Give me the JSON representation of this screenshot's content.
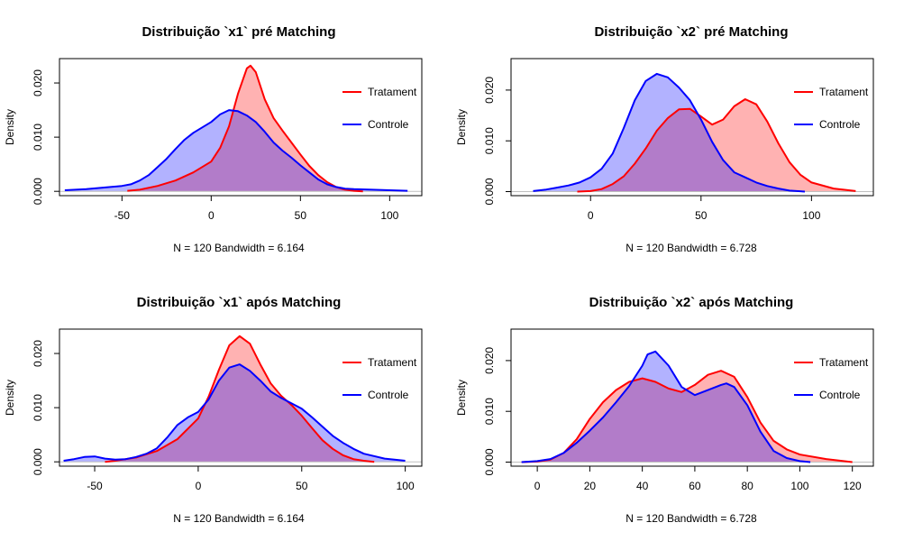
{
  "colors": {
    "tratamento_line": "#ff0000",
    "tratamento_fill": "#ff0000",
    "controle_line": "#0000ff",
    "controle_fill": "#0000ff",
    "overlap_fill": "#a27ec6"
  },
  "legend_labels": [
    "Tratament",
    "Controle"
  ],
  "chart_data": [
    {
      "type": "area",
      "title": "Distribuição `x1` pré Matching",
      "xlabel": "N = 120   Bandwidth = 6.164",
      "ylabel": "Density",
      "xlim": [
        -85,
        118
      ],
      "ylim": [
        -0.0008,
        0.0245
      ],
      "xticks": [
        "-50",
        "0",
        "50",
        "100"
      ],
      "yticks": [
        "0.000",
        "0.010",
        "0.020"
      ],
      "legend_position": "right",
      "series": [
        {
          "name": "Tratament",
          "x": [
            -47,
            -40,
            -30,
            -20,
            -10,
            0,
            5,
            10,
            15,
            20,
            22,
            25,
            30,
            35,
            40,
            45,
            50,
            55,
            60,
            65,
            70,
            75,
            80,
            85
          ],
          "y": [
            0.0001,
            0.0003,
            0.001,
            0.002,
            0.0035,
            0.0055,
            0.008,
            0.012,
            0.018,
            0.0227,
            0.0232,
            0.022,
            0.017,
            0.0135,
            0.0112,
            0.009,
            0.0068,
            0.0047,
            0.003,
            0.0017,
            0.0008,
            0.0003,
            0.0001,
            0.0
          ]
        },
        {
          "name": "Controle",
          "x": [
            -82,
            -70,
            -60,
            -50,
            -45,
            -40,
            -35,
            -30,
            -25,
            -20,
            -15,
            -10,
            -5,
            0,
            5,
            10,
            15,
            20,
            25,
            30,
            35,
            40,
            45,
            50,
            55,
            60,
            65,
            70,
            75,
            80,
            90,
            100,
            110
          ],
          "y": [
            0.0002,
            0.0004,
            0.0007,
            0.001,
            0.0013,
            0.002,
            0.003,
            0.0045,
            0.006,
            0.0078,
            0.0095,
            0.0108,
            0.0118,
            0.0128,
            0.0142,
            0.015,
            0.0148,
            0.014,
            0.0128,
            0.011,
            0.009,
            0.0075,
            0.0062,
            0.0048,
            0.0035,
            0.0022,
            0.0013,
            0.0008,
            0.0005,
            0.0004,
            0.0003,
            0.0002,
            0.0001
          ]
        }
      ]
    },
    {
      "type": "area",
      "title": "Distribuição `x2` pré Matching",
      "xlabel": "N = 120   Bandwidth = 6.728",
      "ylabel": "Density",
      "xlim": [
        -36,
        128
      ],
      "ylim": [
        -0.0008,
        0.0262
      ],
      "xticks": [
        "0",
        "50",
        "100"
      ],
      "yticks": [
        "0.000",
        "0.010",
        "0.020"
      ],
      "legend_position": "right",
      "series": [
        {
          "name": "Tratament",
          "x": [
            -6,
            0,
            5,
            10,
            15,
            20,
            25,
            30,
            35,
            40,
            45,
            50,
            55,
            60,
            65,
            70,
            75,
            80,
            85,
            90,
            95,
            100,
            110,
            120
          ],
          "y": [
            0.0,
            0.0001,
            0.0005,
            0.0015,
            0.003,
            0.0055,
            0.0085,
            0.012,
            0.0145,
            0.0162,
            0.0163,
            0.0148,
            0.0132,
            0.0142,
            0.0168,
            0.0182,
            0.0172,
            0.0138,
            0.0095,
            0.0058,
            0.0033,
            0.0018,
            0.0006,
            0.0001
          ]
        },
        {
          "name": "Controle",
          "x": [
            -26,
            -20,
            -15,
            -10,
            -5,
            0,
            5,
            10,
            15,
            20,
            25,
            30,
            35,
            40,
            45,
            50,
            55,
            60,
            65,
            70,
            75,
            80,
            85,
            90,
            97
          ],
          "y": [
            0.0001,
            0.0004,
            0.0008,
            0.0012,
            0.0018,
            0.0028,
            0.0045,
            0.0075,
            0.0125,
            0.018,
            0.0218,
            0.0232,
            0.0225,
            0.0205,
            0.018,
            0.0142,
            0.0098,
            0.0062,
            0.0038,
            0.0028,
            0.0018,
            0.0011,
            0.0006,
            0.0002,
            0.0
          ]
        }
      ]
    },
    {
      "type": "area",
      "title": "Distribuição `x1` após Matching",
      "xlabel": "N = 120   Bandwidth = 6.164",
      "ylabel": "Density",
      "xlim": [
        -67,
        108
      ],
      "ylim": [
        -0.0008,
        0.0245
      ],
      "xticks": [
        "-50",
        "0",
        "50",
        "100"
      ],
      "yticks": [
        "0.000",
        "0.010",
        "0.020"
      ],
      "legend_position": "right",
      "series": [
        {
          "name": "Tratament",
          "x": [
            -45,
            -40,
            -30,
            -20,
            -10,
            0,
            5,
            10,
            15,
            20,
            25,
            30,
            35,
            40,
            45,
            50,
            55,
            60,
            65,
            70,
            75,
            80,
            85
          ],
          "y": [
            0.0,
            0.0002,
            0.0008,
            0.002,
            0.0042,
            0.008,
            0.012,
            0.017,
            0.0215,
            0.0232,
            0.0218,
            0.018,
            0.0145,
            0.0122,
            0.0105,
            0.0085,
            0.0062,
            0.004,
            0.0024,
            0.0012,
            0.0005,
            0.0002,
            0.0
          ]
        },
        {
          "name": "Controle",
          "x": [
            -65,
            -60,
            -55,
            -50,
            -45,
            -40,
            -35,
            -30,
            -25,
            -20,
            -15,
            -10,
            -5,
            0,
            5,
            10,
            15,
            20,
            25,
            30,
            35,
            40,
            45,
            50,
            55,
            60,
            65,
            70,
            75,
            80,
            90,
            100
          ],
          "y": [
            0.0002,
            0.0005,
            0.0009,
            0.001,
            0.0006,
            0.0004,
            0.0005,
            0.0009,
            0.0015,
            0.0025,
            0.0045,
            0.0068,
            0.0082,
            0.0092,
            0.0115,
            0.015,
            0.0174,
            0.018,
            0.0168,
            0.015,
            0.013,
            0.0118,
            0.0108,
            0.0098,
            0.0082,
            0.0065,
            0.0048,
            0.0035,
            0.0024,
            0.0015,
            0.0006,
            0.0002
          ]
        }
      ]
    },
    {
      "type": "area",
      "title": "Distribuição `x2` após Matching",
      "xlabel": "N = 120   Bandwidth = 6.728",
      "ylabel": "Density",
      "xlim": [
        -10,
        128
      ],
      "ylim": [
        -0.0008,
        0.0262
      ],
      "xticks": [
        "0",
        "20",
        "40",
        "60",
        "80",
        "100",
        "120"
      ],
      "yticks": [
        "0.000",
        "0.010",
        "0.020"
      ],
      "legend_position": "right",
      "series": [
        {
          "name": "Tratament",
          "x": [
            -6,
            0,
            5,
            10,
            15,
            20,
            25,
            30,
            35,
            40,
            45,
            50,
            55,
            60,
            65,
            70,
            75,
            80,
            85,
            90,
            95,
            100,
            110,
            120
          ],
          "y": [
            0.0,
            0.0001,
            0.0005,
            0.0018,
            0.0045,
            0.0085,
            0.0118,
            0.0142,
            0.0158,
            0.0165,
            0.0158,
            0.0145,
            0.0138,
            0.0152,
            0.0172,
            0.018,
            0.0168,
            0.0128,
            0.0078,
            0.0042,
            0.0025,
            0.0015,
            0.0006,
            0.0
          ]
        },
        {
          "name": "Controle",
          "x": [
            -6,
            0,
            5,
            10,
            15,
            20,
            25,
            30,
            35,
            40,
            42,
            45,
            50,
            55,
            60,
            65,
            70,
            72,
            75,
            80,
            85,
            90,
            95,
            100,
            104
          ],
          "y": [
            0.0,
            0.0002,
            0.0006,
            0.0018,
            0.0038,
            0.0062,
            0.0088,
            0.0118,
            0.015,
            0.019,
            0.0212,
            0.0218,
            0.019,
            0.0148,
            0.0132,
            0.0142,
            0.0152,
            0.0155,
            0.0148,
            0.0112,
            0.006,
            0.0022,
            0.0008,
            0.0002,
            0.0
          ]
        }
      ]
    }
  ]
}
